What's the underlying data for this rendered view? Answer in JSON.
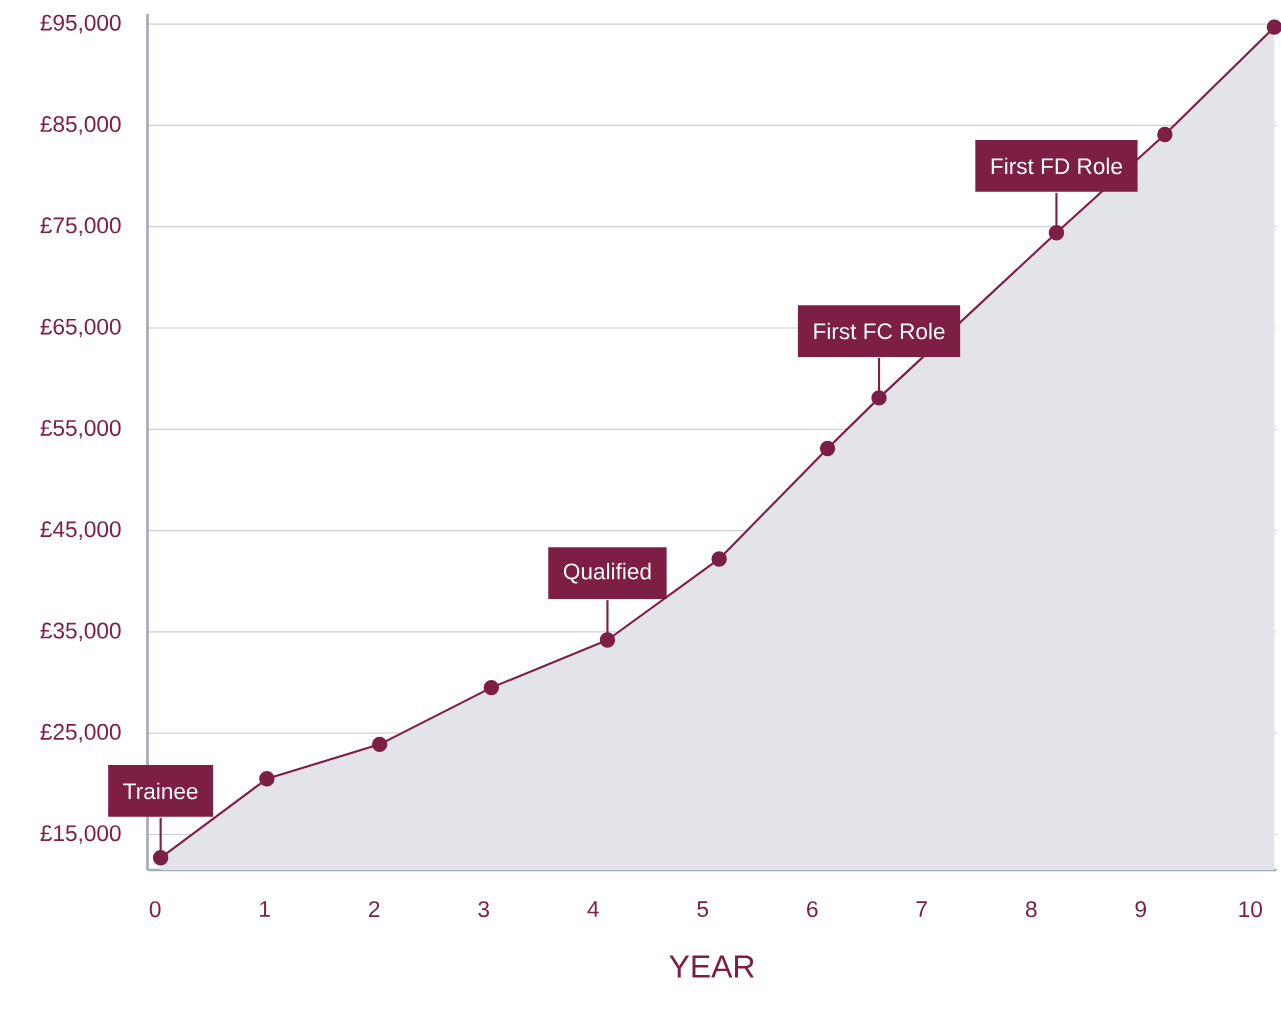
{
  "chart_data": {
    "type": "area",
    "xlabel": "YEAR",
    "x": [
      0.05,
      1.02,
      2.05,
      3.07,
      4.13,
      5.15,
      6.14,
      6.61,
      8.23,
      9.22,
      10.22
    ],
    "series": [
      {
        "color": "#7d1f45",
        "values": [
          12700,
          20500,
          23900,
          29500,
          34200,
          42200,
          53100,
          58100,
          74400,
          84100,
          94700
        ]
      }
    ],
    "xlim": [
      -0.07,
      10.24
    ],
    "ylim": [
      11500,
      96000
    ],
    "xticks": [
      0,
      1,
      2,
      3,
      4,
      5,
      6,
      7,
      8,
      9,
      10
    ],
    "yticks": [
      {
        "value": 15000,
        "label": "£15,000"
      },
      {
        "value": 25000,
        "label": "£25,000"
      },
      {
        "value": 35000,
        "label": "£35,000"
      },
      {
        "value": 45000,
        "label": "£45,000"
      },
      {
        "value": 55000,
        "label": "£55,000"
      },
      {
        "value": 65000,
        "label": "£65,000"
      },
      {
        "value": 75000,
        "label": "£75,000"
      },
      {
        "value": 85000,
        "label": "£85,000"
      },
      {
        "value": 95000,
        "label": "£95,000"
      }
    ],
    "grid": "y",
    "marker": "circle",
    "annotations": [
      {
        "text": "Trainee",
        "x": 0.05,
        "y": 12700
      },
      {
        "text": "Qualified",
        "x": 4.13,
        "y": 34200
      },
      {
        "text": "First FC Role",
        "x": 6.61,
        "y": 58100
      },
      {
        "text": "First FD Role",
        "x": 8.23,
        "y": 74400
      }
    ]
  }
}
